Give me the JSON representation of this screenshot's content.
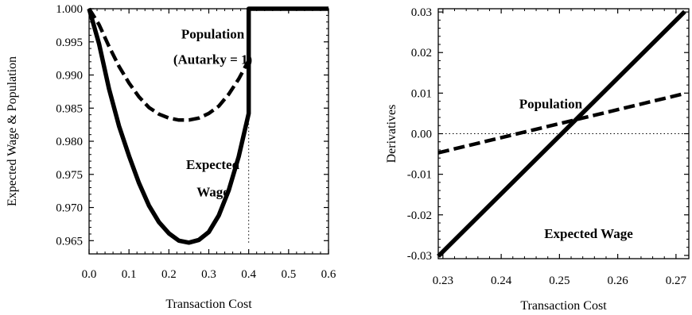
{
  "chart_data": [
    {
      "type": "line",
      "title": "",
      "xlabel": "Transaction Cost",
      "ylabel": "Expected Wage & Population",
      "xlim": [
        0.0,
        0.6
      ],
      "ylim": [
        0.963,
        1.0
      ],
      "x_ticks": [
        "0.0",
        "0.1",
        "0.2",
        "0.3",
        "0.4",
        "0.5",
        "0.6"
      ],
      "y_ticks": [
        "0.965",
        "0.970",
        "0.975",
        "0.980",
        "0.985",
        "0.990",
        "0.995",
        "1.000"
      ],
      "grid": false,
      "legend": "none",
      "series": [
        {
          "name": "Expected Wage",
          "style": "solid",
          "color": "#000000",
          "points": [
            [
              0.0,
              1.0
            ],
            [
              0.025,
              0.9947
            ],
            [
              0.05,
              0.9879
            ],
            [
              0.075,
              0.9823
            ],
            [
              0.1,
              0.9778
            ],
            [
              0.125,
              0.9737
            ],
            [
              0.15,
              0.9703
            ],
            [
              0.175,
              0.9678
            ],
            [
              0.2,
              0.9661
            ],
            [
              0.225,
              0.965
            ],
            [
              0.25,
              0.9647
            ],
            [
              0.275,
              0.9651
            ],
            [
              0.3,
              0.9663
            ],
            [
              0.325,
              0.9688
            ],
            [
              0.35,
              0.9726
            ],
            [
              0.375,
              0.9777
            ],
            [
              0.4,
              0.9842
            ],
            [
              0.4,
              1.0
            ],
            [
              0.6,
              1.0
            ]
          ]
        },
        {
          "name": "Population",
          "style": "dashed",
          "color": "#000000",
          "points": [
            [
              0.0,
              1.0
            ],
            [
              0.025,
              0.9976
            ],
            [
              0.05,
              0.9943
            ],
            [
              0.075,
              0.9913
            ],
            [
              0.1,
              0.9888
            ],
            [
              0.125,
              0.9867
            ],
            [
              0.15,
              0.9851
            ],
            [
              0.175,
              0.9841
            ],
            [
              0.2,
              0.9835
            ],
            [
              0.225,
              0.9832
            ],
            [
              0.25,
              0.9832
            ],
            [
              0.275,
              0.9835
            ],
            [
              0.3,
              0.9842
            ],
            [
              0.325,
              0.9853
            ],
            [
              0.35,
              0.9871
            ],
            [
              0.375,
              0.9894
            ],
            [
              0.4,
              0.9922
            ]
          ]
        }
      ],
      "reference_lines": [
        {
          "orientation": "vertical",
          "x": 0.4,
          "y_from": 0.9647,
          "y_to": 0.9842,
          "style": "dotted"
        }
      ],
      "annotations": [
        {
          "text": "Population",
          "x": 0.31,
          "y": 0.9955
        },
        {
          "text": "(Autarky = 1)",
          "x": 0.31,
          "y": 0.9917
        },
        {
          "text": "Expected",
          "x": 0.31,
          "y": 0.9758
        },
        {
          "text": "Wage",
          "x": 0.31,
          "y": 0.9717
        }
      ]
    },
    {
      "type": "line",
      "title": "",
      "xlabel": "Transaction Cost",
      "ylabel": "Derivatives",
      "xlim": [
        0.2292,
        0.2722
      ],
      "ylim": [
        -0.0308,
        0.0308
      ],
      "x_ticks": [
        "0.23",
        "0.24",
        "0.25",
        "0.26",
        "0.27"
      ],
      "y_ticks": [
        "-0.03",
        "-0.02",
        "-0.01",
        "0.00",
        "0.01",
        "0.02",
        "0.03"
      ],
      "grid": false,
      "legend": "none",
      "series": [
        {
          "name": "Expected Wage",
          "style": "solid",
          "color": "#000000",
          "points": [
            [
              0.2292,
              -0.0302
            ],
            [
              0.2715,
              0.0301
            ]
          ]
        },
        {
          "name": "Population",
          "style": "dashed",
          "color": "#000000",
          "points": [
            [
              0.2292,
              -0.0047
            ],
            [
              0.2715,
              0.0099
            ]
          ]
        }
      ],
      "reference_lines": [
        {
          "orientation": "horizontal",
          "y": 0.0,
          "style": "dotted"
        }
      ],
      "annotations": [
        {
          "text": "Population",
          "x": 0.2485,
          "y": 0.0063
        },
        {
          "text": "Expected Wage",
          "x": 0.255,
          "y": -0.0257
        }
      ]
    }
  ]
}
